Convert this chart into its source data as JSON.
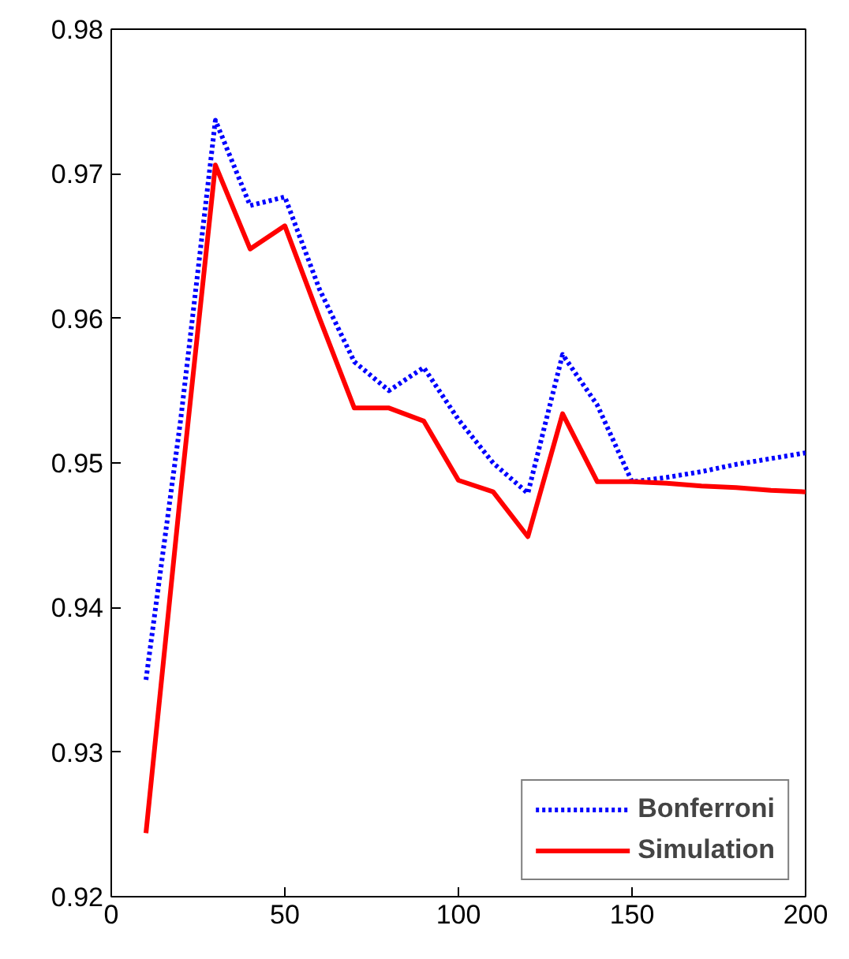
{
  "chart_data": {
    "type": "line",
    "x": [
      10,
      20,
      30,
      40,
      50,
      60,
      70,
      80,
      90,
      100,
      110,
      120,
      130,
      140,
      150,
      160,
      170,
      180,
      190,
      200
    ],
    "series": [
      {
        "name": "Bonferroni",
        "color": "#0000ff",
        "line_style": "dotted",
        "values": [
          0.935,
          0.953,
          0.9737,
          0.9678,
          0.9684,
          0.962,
          0.957,
          0.955,
          0.9566,
          0.953,
          0.95,
          0.9479,
          0.9575,
          0.954,
          0.9487,
          0.949,
          0.9494,
          0.9499,
          0.9503,
          0.9507
        ]
      },
      {
        "name": "Simulation",
        "color": "#ff0000",
        "line_style": "solid",
        "values": [
          0.9244,
          0.948,
          0.9706,
          0.9648,
          0.9664,
          0.96,
          0.9538,
          0.9538,
          0.9529,
          0.9488,
          0.948,
          0.9449,
          0.9534,
          0.9487,
          0.9487,
          0.9486,
          0.9484,
          0.9483,
          0.9481,
          0.948
        ]
      }
    ],
    "xlim": [
      0,
      200
    ],
    "xticks": [
      0,
      50,
      100,
      150,
      200
    ],
    "ylim": [
      0.92,
      0.98
    ],
    "yticks": [
      {
        "value": 0.92,
        "label": "0.92"
      },
      {
        "value": 0.93,
        "label": "0.93"
      },
      {
        "value": 0.94,
        "label": "0.94"
      },
      {
        "value": 0.95,
        "label": "0.95"
      },
      {
        "value": 0.96,
        "label": "0.96"
      },
      {
        "value": 0.97,
        "label": "0.97"
      },
      {
        "value": 0.98,
        "label": "0.98"
      }
    ],
    "legend": "bottom right",
    "grid": false,
    "marker": "none"
  }
}
